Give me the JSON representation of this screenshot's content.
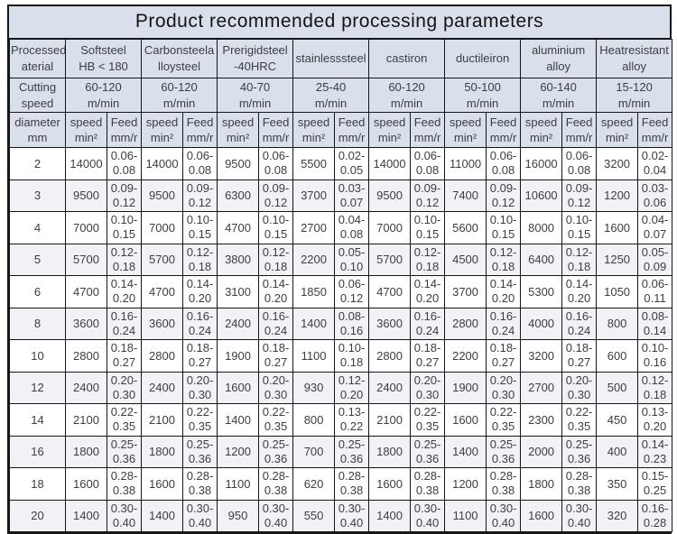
{
  "title": "Product recommended processing parameters",
  "colors": {
    "header_bg": "#d9e0ec",
    "row_bg": "#ffffff",
    "row_alt_bg": "#f0f2f7",
    "border": "#161616",
    "text": "#3d3d42"
  },
  "table": {
    "corner_header": "Processedm\naterial",
    "cutting_speed_label": "Cutting\nspeed",
    "diameter_header": "diameter\nmm",
    "speed_header": "speed\nmin²",
    "feed_header": "Feed\nmm/r",
    "materials": [
      {
        "name": "Softsteel\nHB < 180",
        "cutting_speed": "60-120\nm/min"
      },
      {
        "name": "Carbonsteela\nlloysteel",
        "cutting_speed": "60-120\nm/min"
      },
      {
        "name": "Prerigidsteel\n-40HRC",
        "cutting_speed": "40-70\nm/min"
      },
      {
        "name": "stainlesssteel",
        "cutting_speed": "25-40\nm/min"
      },
      {
        "name": "castiron",
        "cutting_speed": "60-120\nm/min"
      },
      {
        "name": "ductileiron",
        "cutting_speed": "50-100\nm/min"
      },
      {
        "name": "aluminium\nalloy",
        "cutting_speed": "60-140\nm/min"
      },
      {
        "name": "Heatresistant\nalloy",
        "cutting_speed": "15-120\nm/min"
      }
    ],
    "rows": [
      {
        "diameter": "2",
        "cells": [
          [
            "14000",
            "0.06-0.08"
          ],
          [
            "14000",
            "0.06-0.08"
          ],
          [
            "9500",
            "0.06-0.08"
          ],
          [
            "5500",
            "0.02-0.05"
          ],
          [
            "14000",
            "0.06-0.08"
          ],
          [
            "11000",
            "0.06-0.08"
          ],
          [
            "16000",
            "0.06-0.08"
          ],
          [
            "3200",
            "0.02-0.04"
          ]
        ]
      },
      {
        "diameter": "3",
        "cells": [
          [
            "9500",
            "0.09-0.12"
          ],
          [
            "9500",
            "0.09-0.12"
          ],
          [
            "6300",
            "0.09-0.12"
          ],
          [
            "3700",
            "0.03-0.07"
          ],
          [
            "9500",
            "0.09-0.12"
          ],
          [
            "7400",
            "0.09-0.12"
          ],
          [
            "10600",
            "0.09-0.12"
          ],
          [
            "1200",
            "0.03-0.06"
          ]
        ]
      },
      {
        "diameter": "4",
        "cells": [
          [
            "7000",
            "0.10-0.15"
          ],
          [
            "7000",
            "0.10-0.15"
          ],
          [
            "4700",
            "0.10-0.15"
          ],
          [
            "2700",
            "0.04-0.08"
          ],
          [
            "7000",
            "0.10-0.15"
          ],
          [
            "5600",
            "0.10-0.15"
          ],
          [
            "8000",
            "0.10-0.15"
          ],
          [
            "1600",
            "0.04-0.07"
          ]
        ]
      },
      {
        "diameter": "5",
        "cells": [
          [
            "5700",
            "0.12-0.18"
          ],
          [
            "5700",
            "0.12-0.18"
          ],
          [
            "3800",
            "0.12-0.18"
          ],
          [
            "2200",
            "0.05-0.10"
          ],
          [
            "5700",
            "0.12-0.18"
          ],
          [
            "4500",
            "0.12-0.18"
          ],
          [
            "6400",
            "0.12-0.18"
          ],
          [
            "1250",
            "0.05-0.09"
          ]
        ]
      },
      {
        "diameter": "6",
        "cells": [
          [
            "4700",
            "0.14-0.20"
          ],
          [
            "4700",
            "0.14-0.20"
          ],
          [
            "3100",
            "0.14-0.20"
          ],
          [
            "1850",
            "0.06-0.12"
          ],
          [
            "4700",
            "0.14-0.20"
          ],
          [
            "3700",
            "0.14-0.20"
          ],
          [
            "5300",
            "0.14-0.20"
          ],
          [
            "1050",
            "0.06-0.11"
          ]
        ]
      },
      {
        "diameter": "8",
        "cells": [
          [
            "3600",
            "0.16-0.24"
          ],
          [
            "3600",
            "0.16-0.24"
          ],
          [
            "2400",
            "0.16-0.24"
          ],
          [
            "1400",
            "0.08-0.16"
          ],
          [
            "3600",
            "0.16-0.24"
          ],
          [
            "2800",
            "0.16-0.24"
          ],
          [
            "4000",
            "0.16-0.24"
          ],
          [
            "800",
            "0.08-0.14"
          ]
        ]
      },
      {
        "diameter": "10",
        "cells": [
          [
            "2800",
            "0.18-0.27"
          ],
          [
            "2800",
            "0.18-0.27"
          ],
          [
            "1900",
            "0.18-0.27"
          ],
          [
            "1100",
            "0.10-0.18"
          ],
          [
            "2800",
            "0.18-0.27"
          ],
          [
            "2200",
            "0.18-0.27"
          ],
          [
            "3200",
            "0.18-0.27"
          ],
          [
            "600",
            "0.10-0.16"
          ]
        ]
      },
      {
        "diameter": "12",
        "cells": [
          [
            "2400",
            "0.20-0.30"
          ],
          [
            "2400",
            "0.20-0.30"
          ],
          [
            "1600",
            "0.20-0.30"
          ],
          [
            "930",
            "0.12-0.20"
          ],
          [
            "2400",
            "0.20-0.30"
          ],
          [
            "1900",
            "0.20-0.30"
          ],
          [
            "2700",
            "0.20-0.30"
          ],
          [
            "500",
            "0.12-0.18"
          ]
        ]
      },
      {
        "diameter": "14",
        "cells": [
          [
            "2100",
            "0.22-0.35"
          ],
          [
            "2100",
            "0.22-0.35"
          ],
          [
            "1400",
            "0.22-0.35"
          ],
          [
            "800",
            "0.13-0.22"
          ],
          [
            "2100",
            "0.22-0.35"
          ],
          [
            "1600",
            "0.22-0.35"
          ],
          [
            "2300",
            "0.22-0.35"
          ],
          [
            "450",
            "0.13-0.20"
          ]
        ]
      },
      {
        "diameter": "16",
        "cells": [
          [
            "1800",
            "0.25-0.36"
          ],
          [
            "1800",
            "0.25-0.36"
          ],
          [
            "1200",
            "0.25-0.36"
          ],
          [
            "700",
            "0.25-0.36"
          ],
          [
            "1800",
            "0.25-0.36"
          ],
          [
            "1400",
            "0.25-0.36"
          ],
          [
            "2000",
            "0.25-0.36"
          ],
          [
            "400",
            "0.14-0.23"
          ]
        ]
      },
      {
        "diameter": "18",
        "cells": [
          [
            "1600",
            "0.28-0.38"
          ],
          [
            "1600",
            "0.28-0.38"
          ],
          [
            "1100",
            "0.28-0.38"
          ],
          [
            "620",
            "0.28-0.38"
          ],
          [
            "1600",
            "0.28-0.38"
          ],
          [
            "1200",
            "0.28-0.38"
          ],
          [
            "1800",
            "0.28-0.38"
          ],
          [
            "350",
            "0.15-0.25"
          ]
        ]
      },
      {
        "diameter": "20",
        "cells": [
          [
            "1400",
            "0.30-0.40"
          ],
          [
            "1400",
            "0.30-0.40"
          ],
          [
            "950",
            "0.30-0.40"
          ],
          [
            "550",
            "0.30-0.40"
          ],
          [
            "1400",
            "0.30-0.40"
          ],
          [
            "1100",
            "0.30-0.40"
          ],
          [
            "1600",
            "0.30-0.40"
          ],
          [
            "320",
            "0.16-0.28"
          ]
        ]
      }
    ]
  }
}
